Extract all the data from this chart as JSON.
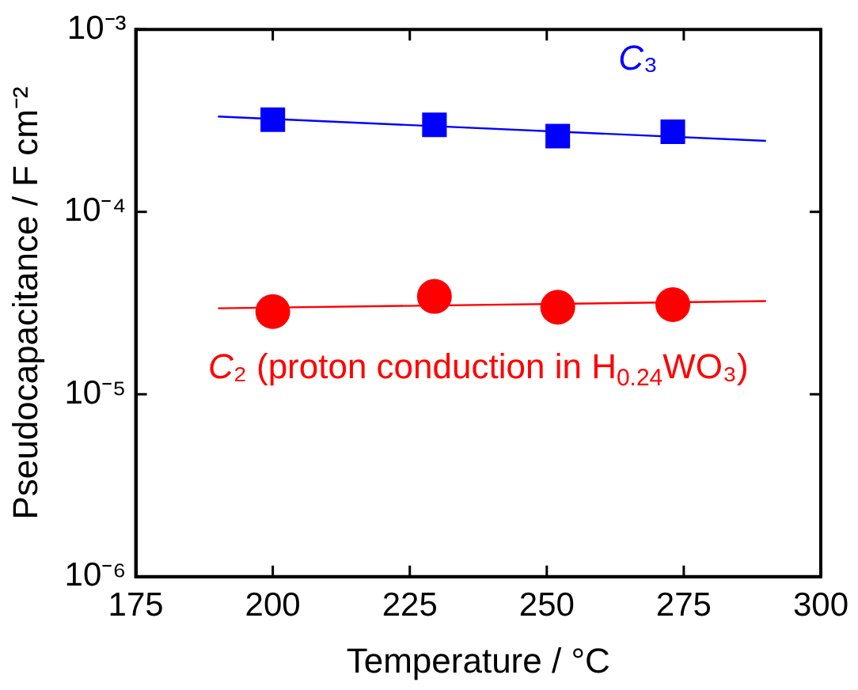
{
  "chart_data": {
    "type": "scatter",
    "xlabel": "Temperature / °C",
    "ylabel": "Pseudocapacitance / F cm⁻²",
    "log": "y",
    "xlim": [
      175,
      300
    ],
    "xticks": [
      175,
      200,
      225,
      250,
      275,
      300
    ],
    "ylim": [
      1e-06,
      0.001
    ],
    "yticks": [
      {
        "value": 1e-06,
        "label": "10⁻⁶"
      },
      {
        "value": 1e-05,
        "label": "10⁻⁵"
      },
      {
        "value": 0.0001,
        "label": "10⁻⁴"
      },
      {
        "value": 0.001,
        "label": "10⁻³"
      }
    ],
    "grid": false,
    "legend": false,
    "series": [
      {
        "name": "C₃",
        "marker": "square",
        "color": "#0000ff",
        "x": [
          200,
          229.5,
          252,
          273
        ],
        "values": [
          0.00032,
          0.0003,
          0.00026,
          0.000275
        ]
      },
      {
        "name": "C₂ (proton conduction in H$_{0.24}$WO₃)",
        "marker": "circle",
        "color": "#ff0000",
        "x": [
          200,
          229.5,
          252,
          273
        ],
        "values": [
          2.84e-05,
          3.44e-05,
          3e-05,
          3.1e-05
        ]
      },
      {
        "type": "line",
        "marker": "none",
        "color": "#0000ff",
        "x": [
          190,
          290
        ],
        "values": [
          0.000333,
          0.000245
        ]
      },
      {
        "type": "line",
        "marker": "none",
        "color": "#ff0000",
        "x": [
          190,
          290
        ],
        "values": [
          2.96e-05,
          3.24e-05
        ]
      }
    ]
  }
}
